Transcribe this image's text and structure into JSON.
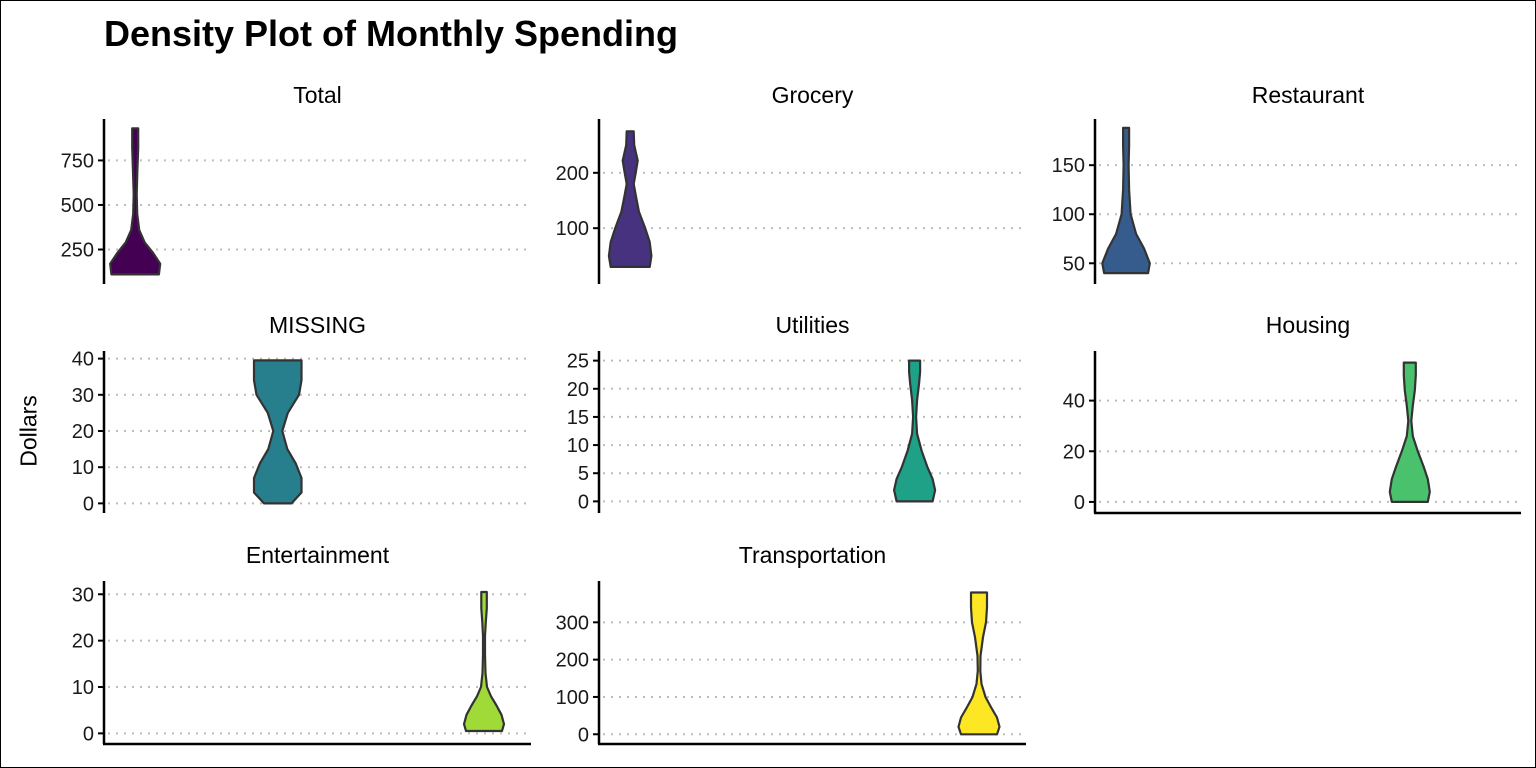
{
  "chart_data": {
    "type": "violin",
    "title": "Density Plot of Monthly Spending",
    "ylabel": "Dollars",
    "xlabel": "",
    "grid": "horizontal-dotted",
    "legend": "none",
    "panels": [
      {
        "name": "Total",
        "color": "#440154",
        "ylim": [
          90,
          960
        ],
        "yticks": [
          250,
          500,
          750
        ],
        "slot": 0,
        "violin": {
          "min": 110,
          "max": 930,
          "profile": [
            [
              110,
              0.95
            ],
            [
              170,
              1.0
            ],
            [
              230,
              0.72
            ],
            [
              290,
              0.38
            ],
            [
              360,
              0.16
            ],
            [
              450,
              0.08
            ],
            [
              560,
              0.06
            ],
            [
              700,
              0.09
            ],
            [
              820,
              0.12
            ],
            [
              930,
              0.12
            ]
          ]
        }
      },
      {
        "name": "Grocery",
        "color": "#46327e",
        "ylim": [
          10,
          290
        ],
        "yticks": [
          100,
          200
        ],
        "slot": 0,
        "violin": {
          "min": 30,
          "max": 275,
          "profile": [
            [
              30,
              0.78
            ],
            [
              50,
              0.85
            ],
            [
              75,
              0.78
            ],
            [
              100,
              0.6
            ],
            [
              130,
              0.35
            ],
            [
              160,
              0.22
            ],
            [
              180,
              0.14
            ],
            [
              200,
              0.22
            ],
            [
              222,
              0.3
            ],
            [
              250,
              0.16
            ],
            [
              275,
              0.14
            ]
          ]
        }
      },
      {
        "name": "Restaurant",
        "color": "#365c8d",
        "ylim": [
          35,
          193
        ],
        "yticks": [
          50,
          100,
          150
        ],
        "slot": 0,
        "violin": {
          "min": 40,
          "max": 188,
          "profile": [
            [
              40,
              0.88
            ],
            [
              50,
              0.95
            ],
            [
              65,
              0.72
            ],
            [
              80,
              0.4
            ],
            [
              100,
              0.18
            ],
            [
              125,
              0.12
            ],
            [
              150,
              0.1
            ],
            [
              170,
              0.12
            ],
            [
              188,
              0.12
            ]
          ]
        }
      },
      {
        "name": "MISSING",
        "color": "#277f8e",
        "ylim": [
          -1,
          41
        ],
        "yticks": [
          0,
          10,
          20,
          30,
          40
        ],
        "slot": 1,
        "violin": {
          "min": 0,
          "max": 39.5,
          "profile": [
            [
              0,
              0.55
            ],
            [
              3,
              0.95
            ],
            [
              7,
              0.95
            ],
            [
              11,
              0.72
            ],
            [
              15,
              0.38
            ],
            [
              20,
              0.18
            ],
            [
              25,
              0.4
            ],
            [
              30,
              0.85
            ],
            [
              34,
              0.95
            ],
            [
              39.5,
              0.95
            ]
          ]
        }
      },
      {
        "name": "Utilities",
        "color": "#1fa187",
        "ylim": [
          -1,
          26
        ],
        "yticks": [
          0,
          5,
          10,
          15,
          20,
          25
        ],
        "slot": 2,
        "violin": {
          "min": 0,
          "max": 25,
          "profile": [
            [
              0,
              0.72
            ],
            [
              2,
              0.82
            ],
            [
              4,
              0.72
            ],
            [
              6,
              0.52
            ],
            [
              9,
              0.28
            ],
            [
              12,
              0.1
            ],
            [
              15,
              0.06
            ],
            [
              18,
              0.1
            ],
            [
              21,
              0.18
            ],
            [
              23,
              0.22
            ],
            [
              25,
              0.22
            ]
          ]
        }
      },
      {
        "name": "Housing",
        "color": "#4ac16d",
        "ylim": [
          -2,
          58
        ],
        "yticks": [
          0,
          20,
          40
        ],
        "slot": 2,
        "violin": {
          "min": 0,
          "max": 55,
          "profile": [
            [
              0,
              0.72
            ],
            [
              4,
              0.8
            ],
            [
              9,
              0.72
            ],
            [
              14,
              0.55
            ],
            [
              20,
              0.32
            ],
            [
              26,
              0.12
            ],
            [
              32,
              0.06
            ],
            [
              38,
              0.12
            ],
            [
              44,
              0.2
            ],
            [
              50,
              0.24
            ],
            [
              55,
              0.24
            ]
          ]
        }
      },
      {
        "name": "Entertainment",
        "color": "#a0da39",
        "ylim": [
          -1,
          32
        ],
        "yticks": [
          0,
          10,
          20,
          30
        ],
        "slot": 3,
        "violin": {
          "min": 0.5,
          "max": 30.5,
          "profile": [
            [
              0.5,
              0.72
            ],
            [
              2,
              0.8
            ],
            [
              4,
              0.7
            ],
            [
              6,
              0.5
            ],
            [
              8,
              0.28
            ],
            [
              10,
              0.12
            ],
            [
              13,
              0.06
            ],
            [
              17,
              0.04
            ],
            [
              21,
              0.04
            ],
            [
              24,
              0.07
            ],
            [
              27,
              0.11
            ],
            [
              30.5,
              0.11
            ]
          ]
        }
      },
      {
        "name": "Transportation",
        "color": "#fde725",
        "ylim": [
          -10,
          400
        ],
        "yticks": [
          0,
          100,
          200,
          300
        ],
        "slot": 3,
        "violin": {
          "min": 0,
          "max": 380,
          "profile": [
            [
              0,
              0.72
            ],
            [
              20,
              0.82
            ],
            [
              45,
              0.72
            ],
            [
              70,
              0.5
            ],
            [
              100,
              0.26
            ],
            [
              135,
              0.1
            ],
            [
              170,
              0.05
            ],
            [
              210,
              0.06
            ],
            [
              260,
              0.16
            ],
            [
              300,
              0.28
            ],
            [
              340,
              0.32
            ],
            [
              380,
              0.32
            ]
          ]
        }
      }
    ]
  }
}
